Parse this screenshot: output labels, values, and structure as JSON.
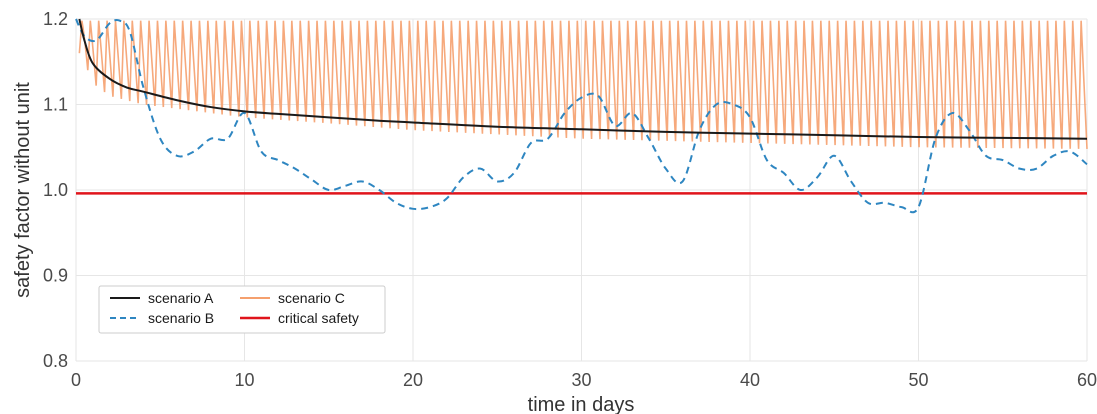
{
  "chart_data": {
    "type": "line",
    "title": "",
    "xlabel": "time in days",
    "ylabel": "safety factor without unit",
    "xlim": [
      0,
      60
    ],
    "ylim": [
      0.8,
      1.2
    ],
    "xticks": [
      0,
      10,
      20,
      30,
      40,
      50,
      60
    ],
    "yticks": [
      0.8,
      0.9,
      1.0,
      1.1,
      1.2
    ],
    "xtick_labels": [
      "0",
      "10",
      "20",
      "30",
      "40",
      "50",
      "60"
    ],
    "ytick_labels": [
      "0.8",
      "0.9",
      "1.0",
      "1.1",
      "1.2"
    ],
    "grid": true,
    "legend_position": "bottom-left",
    "series": [
      {
        "name": "scenario A",
        "color": "#1a1a1a",
        "style": "solid",
        "x": [
          0.2,
          0.5,
          1,
          2,
          3,
          4,
          6,
          8,
          10,
          12,
          15,
          18,
          20,
          25,
          30,
          35,
          40,
          45,
          50,
          55,
          60
        ],
        "y": [
          1.2,
          1.175,
          1.148,
          1.13,
          1.12,
          1.115,
          1.105,
          1.097,
          1.092,
          1.089,
          1.085,
          1.081,
          1.079,
          1.074,
          1.071,
          1.068,
          1.066,
          1.064,
          1.062,
          1.061,
          1.06
        ]
      },
      {
        "name": "scenario B",
        "color": "#2e86c1",
        "style": "dashed",
        "x": [
          0,
          0.5,
          1.2,
          2,
          2.6,
          3.2,
          4,
          5,
          6,
          7,
          8,
          9,
          10,
          11,
          12,
          13,
          14,
          15,
          16,
          17,
          18,
          19,
          20,
          21,
          22,
          23,
          24,
          25,
          26,
          27,
          28,
          29,
          30,
          31,
          32,
          33,
          34,
          35,
          36,
          37,
          38,
          39,
          40,
          41,
          42,
          43,
          44,
          45,
          46,
          47,
          48,
          49,
          50,
          51,
          52,
          53,
          54,
          55,
          56,
          57,
          58,
          59,
          60
        ],
        "y": [
          1.2,
          1.18,
          1.175,
          1.195,
          1.198,
          1.185,
          1.12,
          1.06,
          1.04,
          1.045,
          1.06,
          1.06,
          1.09,
          1.045,
          1.035,
          1.025,
          1.012,
          1.0,
          1.005,
          1.01,
          1.0,
          0.985,
          0.978,
          0.98,
          0.99,
          1.015,
          1.025,
          1.01,
          1.02,
          1.055,
          1.06,
          1.09,
          1.108,
          1.11,
          1.075,
          1.09,
          1.06,
          1.025,
          1.01,
          1.07,
          1.1,
          1.1,
          1.085,
          1.035,
          1.02,
          1.0,
          1.015,
          1.04,
          1.01,
          0.985,
          0.985,
          0.98,
          0.98,
          1.06,
          1.09,
          1.07,
          1.04,
          1.035,
          1.025,
          1.025,
          1.04,
          1.045,
          1.03
        ]
      },
      {
        "name": "scenario C",
        "color": "#f5a06e",
        "style": "solid",
        "oscillation": {
          "cycles": 120,
          "peak": 1.198,
          "trough_x": [
            0.3,
            1,
            2,
            4,
            6,
            10,
            15,
            20,
            25,
            30,
            40,
            50,
            60
          ],
          "trough_y": [
            1.16,
            1.125,
            1.11,
            1.1,
            1.095,
            1.085,
            1.078,
            1.07,
            1.065,
            1.06,
            1.055,
            1.05,
            1.048
          ]
        }
      },
      {
        "name": "critical safety",
        "color": "#e0141b",
        "style": "solid",
        "x": [
          0,
          60
        ],
        "y": [
          0.996,
          0.996
        ]
      }
    ],
    "legend": {
      "entries": [
        {
          "name": "scenario A",
          "color": "#1a1a1a",
          "style": "solid"
        },
        {
          "name": "scenario C",
          "color": "#f5a06e",
          "style": "solid"
        },
        {
          "name": "scenario B",
          "color": "#2e86c1",
          "style": "dashed"
        },
        {
          "name": "critical safety",
          "color": "#e0141b",
          "style": "solid"
        }
      ]
    }
  }
}
